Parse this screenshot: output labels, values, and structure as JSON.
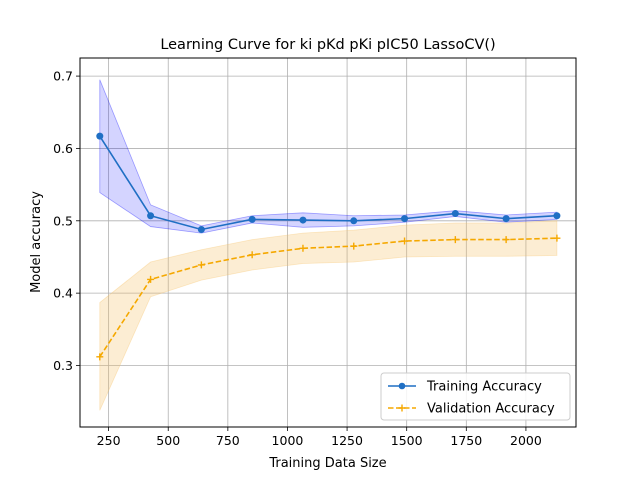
{
  "chart_data": {
    "type": "line",
    "title": "Learning Curve for ki pKd pKi pIC50 LassoCV()",
    "xlabel": "Training Data Size",
    "ylabel": "Model accuracy",
    "xlim": [
      130,
      2210
    ],
    "ylim": [
      0.215,
      0.725
    ],
    "xticks": [
      250,
      500,
      750,
      1000,
      1250,
      1500,
      1750,
      2000
    ],
    "yticks": [
      0.3,
      0.4,
      0.5,
      0.6,
      0.7
    ],
    "xtick_labels": [
      "250",
      "500",
      "750",
      "1000",
      "1250",
      "1500",
      "1750",
      "2000"
    ],
    "ytick_labels": [
      "0.3",
      "0.4",
      "0.5",
      "0.6",
      "0.7"
    ],
    "grid": true,
    "legend_position": "lower-right",
    "x": [
      213,
      426,
      639,
      852,
      1065,
      1278,
      1491,
      1704,
      1917,
      2130
    ],
    "series": [
      {
        "name": "Training Accuracy",
        "color": "#1f6fc4",
        "band_color": "#0000ff",
        "linestyle": "solid",
        "marker": "circle",
        "values": [
          0.617,
          0.507,
          0.488,
          0.502,
          0.501,
          0.5,
          0.503,
          0.51,
          0.503,
          0.507
        ],
        "upper": [
          0.695,
          0.522,
          0.493,
          0.507,
          0.511,
          0.507,
          0.508,
          0.514,
          0.508,
          0.512
        ],
        "lower": [
          0.539,
          0.492,
          0.483,
          0.497,
          0.491,
          0.493,
          0.498,
          0.506,
          0.498,
          0.502
        ]
      },
      {
        "name": "Validation Accuracy",
        "color": "#f5a800",
        "band_color": "#f5c060",
        "linestyle": "dashed",
        "marker": "plus",
        "values": [
          0.312,
          0.419,
          0.439,
          0.453,
          0.462,
          0.465,
          0.472,
          0.474,
          0.474,
          0.476
        ],
        "upper": [
          0.387,
          0.443,
          0.46,
          0.474,
          0.483,
          0.487,
          0.494,
          0.497,
          0.497,
          0.5
        ],
        "lower": [
          0.238,
          0.395,
          0.418,
          0.432,
          0.441,
          0.443,
          0.45,
          0.451,
          0.451,
          0.452
        ]
      }
    ]
  }
}
